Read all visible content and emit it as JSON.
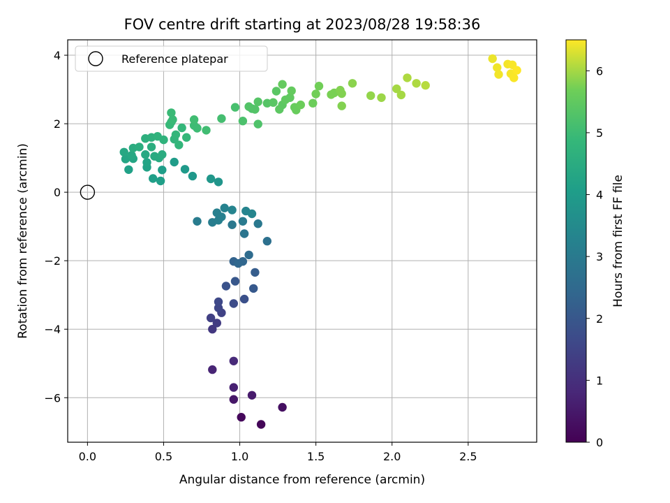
{
  "chart_data": {
    "type": "scatter",
    "title": "FOV centre drift starting at 2023/08/28 19:58:36",
    "xlabel": "Angular distance from reference (arcmin)",
    "ylabel": "Rotation from reference (arcmin)",
    "xlim": [
      -0.13,
      2.95
    ],
    "ylim": [
      -7.3,
      4.45
    ],
    "x_ticks": [
      0.0,
      0.5,
      1.0,
      1.5,
      2.0,
      2.5
    ],
    "x_tick_labels": [
      "0.0",
      "0.5",
      "1.0",
      "1.5",
      "2.0",
      "2.5"
    ],
    "y_ticks": [
      -6,
      -4,
      -2,
      0,
      2,
      4
    ],
    "y_tick_labels": [
      "−6",
      "−4",
      "−2",
      "0",
      "2",
      "4"
    ],
    "grid": true,
    "legend": {
      "position": "top-left",
      "entries": [
        {
          "label": "Reference platepar",
          "marker": "open-circle"
        }
      ]
    },
    "reference_point": {
      "x": 0.0,
      "y": 0.0
    },
    "colorbar": {
      "label": "Hours from first FF file",
      "colormap": "viridis",
      "range": [
        0,
        6.5
      ],
      "ticks": [
        0,
        1,
        2,
        3,
        4,
        5,
        6
      ],
      "tick_labels": [
        "0",
        "1",
        "2",
        "3",
        "4",
        "5",
        "6"
      ]
    },
    "points": [
      {
        "x": 1.01,
        "y": -6.57,
        "t": 0.15
      },
      {
        "x": 1.14,
        "y": -6.78,
        "t": 0.1
      },
      {
        "x": 1.28,
        "y": -6.28,
        "t": 0.3
      },
      {
        "x": 0.96,
        "y": -6.05,
        "t": 0.45
      },
      {
        "x": 1.08,
        "y": -5.93,
        "t": 0.55
      },
      {
        "x": 0.96,
        "y": -5.7,
        "t": 0.65
      },
      {
        "x": 0.82,
        "y": -5.18,
        "t": 0.75
      },
      {
        "x": 0.96,
        "y": -4.93,
        "t": 0.85
      },
      {
        "x": 0.82,
        "y": -4.0,
        "t": 1.2
      },
      {
        "x": 0.85,
        "y": -3.82,
        "t": 1.3
      },
      {
        "x": 0.81,
        "y": -3.67,
        "t": 1.4
      },
      {
        "x": 0.88,
        "y": -3.52,
        "t": 1.45
      },
      {
        "x": 0.86,
        "y": -3.38,
        "t": 1.55
      },
      {
        "x": 0.86,
        "y": -3.2,
        "t": 1.6
      },
      {
        "x": 0.96,
        "y": -3.25,
        "t": 1.7
      },
      {
        "x": 1.03,
        "y": -3.12,
        "t": 1.8
      },
      {
        "x": 0.91,
        "y": -2.74,
        "t": 1.9
      },
      {
        "x": 0.97,
        "y": -2.6,
        "t": 2.0
      },
      {
        "x": 1.09,
        "y": -2.81,
        "t": 2.05
      },
      {
        "x": 1.1,
        "y": -2.34,
        "t": 2.15
      },
      {
        "x": 0.96,
        "y": -2.02,
        "t": 2.3
      },
      {
        "x": 1.02,
        "y": -2.02,
        "t": 2.4
      },
      {
        "x": 0.99,
        "y": -2.08,
        "t": 2.45
      },
      {
        "x": 1.06,
        "y": -1.83,
        "t": 2.55
      },
      {
        "x": 1.18,
        "y": -1.43,
        "t": 2.7
      },
      {
        "x": 1.03,
        "y": -1.21,
        "t": 2.85
      },
      {
        "x": 0.95,
        "y": -0.95,
        "t": 2.95
      },
      {
        "x": 1.12,
        "y": -0.92,
        "t": 2.95
      },
      {
        "x": 1.02,
        "y": -0.85,
        "t": 3.0
      },
      {
        "x": 0.72,
        "y": -0.85,
        "t": 3.05
      },
      {
        "x": 0.82,
        "y": -0.88,
        "t": 3.1
      },
      {
        "x": 0.86,
        "y": -0.82,
        "t": 3.15
      },
      {
        "x": 0.88,
        "y": -0.72,
        "t": 3.2
      },
      {
        "x": 0.85,
        "y": -0.6,
        "t": 3.2
      },
      {
        "x": 0.9,
        "y": -0.46,
        "t": 3.25
      },
      {
        "x": 0.95,
        "y": -0.52,
        "t": 3.3
      },
      {
        "x": 1.04,
        "y": -0.55,
        "t": 3.3
      },
      {
        "x": 1.08,
        "y": -0.63,
        "t": 3.35
      },
      {
        "x": 0.86,
        "y": 0.3,
        "t": 3.8
      },
      {
        "x": 0.81,
        "y": 0.39,
        "t": 3.85
      },
      {
        "x": 0.69,
        "y": 0.47,
        "t": 3.9
      },
      {
        "x": 0.64,
        "y": 0.67,
        "t": 3.95
      },
      {
        "x": 0.57,
        "y": 0.88,
        "t": 4.0
      },
      {
        "x": 0.49,
        "y": 0.65,
        "t": 4.05
      },
      {
        "x": 0.48,
        "y": 0.33,
        "t": 4.1
      },
      {
        "x": 0.43,
        "y": 0.4,
        "t": 4.1
      },
      {
        "x": 0.27,
        "y": 0.66,
        "t": 4.15
      },
      {
        "x": 0.39,
        "y": 0.73,
        "t": 4.2
      },
      {
        "x": 0.39,
        "y": 0.87,
        "t": 4.25
      },
      {
        "x": 0.25,
        "y": 0.97,
        "t": 4.3
      },
      {
        "x": 0.3,
        "y": 0.98,
        "t": 4.3
      },
      {
        "x": 0.24,
        "y": 1.17,
        "t": 4.35
      },
      {
        "x": 0.29,
        "y": 1.08,
        "t": 4.35
      },
      {
        "x": 0.38,
        "y": 1.1,
        "t": 4.4
      },
      {
        "x": 0.44,
        "y": 1.05,
        "t": 4.45
      },
      {
        "x": 0.47,
        "y": 1.0,
        "t": 4.45
      },
      {
        "x": 0.49,
        "y": 1.1,
        "t": 4.5
      },
      {
        "x": 0.3,
        "y": 1.29,
        "t": 4.5
      },
      {
        "x": 0.34,
        "y": 1.32,
        "t": 4.55
      },
      {
        "x": 0.42,
        "y": 1.32,
        "t": 4.55
      },
      {
        "x": 0.38,
        "y": 1.57,
        "t": 4.6
      },
      {
        "x": 0.42,
        "y": 1.6,
        "t": 4.65
      },
      {
        "x": 0.46,
        "y": 1.63,
        "t": 4.7
      },
      {
        "x": 0.5,
        "y": 1.53,
        "t": 4.7
      },
      {
        "x": 0.57,
        "y": 1.55,
        "t": 4.75
      },
      {
        "x": 0.58,
        "y": 1.68,
        "t": 4.8
      },
      {
        "x": 0.6,
        "y": 1.38,
        "t": 4.8
      },
      {
        "x": 0.65,
        "y": 1.6,
        "t": 4.85
      },
      {
        "x": 0.62,
        "y": 1.88,
        "t": 4.85
      },
      {
        "x": 0.55,
        "y": 2.05,
        "t": 4.9
      },
      {
        "x": 0.54,
        "y": 1.97,
        "t": 4.9
      },
      {
        "x": 0.56,
        "y": 2.12,
        "t": 4.95
      },
      {
        "x": 0.55,
        "y": 2.32,
        "t": 4.95
      },
      {
        "x": 0.7,
        "y": 1.95,
        "t": 5.0
      },
      {
        "x": 0.72,
        "y": 1.87,
        "t": 5.0
      },
      {
        "x": 0.7,
        "y": 2.12,
        "t": 5.05
      },
      {
        "x": 0.78,
        "y": 1.81,
        "t": 5.05
      },
      {
        "x": 0.88,
        "y": 2.15,
        "t": 5.1
      },
      {
        "x": 0.97,
        "y": 2.48,
        "t": 5.15
      },
      {
        "x": 1.02,
        "y": 2.08,
        "t": 5.2
      },
      {
        "x": 1.12,
        "y": 1.99,
        "t": 5.25
      },
      {
        "x": 1.08,
        "y": 2.44,
        "t": 5.25
      },
      {
        "x": 1.06,
        "y": 2.5,
        "t": 5.3
      },
      {
        "x": 1.1,
        "y": 2.42,
        "t": 5.3
      },
      {
        "x": 1.12,
        "y": 2.64,
        "t": 5.35
      },
      {
        "x": 1.18,
        "y": 2.6,
        "t": 5.35
      },
      {
        "x": 1.22,
        "y": 2.62,
        "t": 5.4
      },
      {
        "x": 1.24,
        "y": 2.95,
        "t": 5.4
      },
      {
        "x": 1.28,
        "y": 2.55,
        "t": 5.45
      },
      {
        "x": 1.26,
        "y": 2.42,
        "t": 5.45
      },
      {
        "x": 1.3,
        "y": 2.7,
        "t": 5.5
      },
      {
        "x": 1.33,
        "y": 2.76,
        "t": 5.5
      },
      {
        "x": 1.28,
        "y": 3.15,
        "t": 5.55
      },
      {
        "x": 1.34,
        "y": 2.96,
        "t": 5.55
      },
      {
        "x": 1.36,
        "y": 2.48,
        "t": 5.6
      },
      {
        "x": 1.37,
        "y": 2.4,
        "t": 5.6
      },
      {
        "x": 1.4,
        "y": 2.55,
        "t": 5.65
      },
      {
        "x": 1.48,
        "y": 2.6,
        "t": 5.65
      },
      {
        "x": 1.5,
        "y": 2.87,
        "t": 5.7
      },
      {
        "x": 1.52,
        "y": 3.1,
        "t": 5.7
      },
      {
        "x": 1.6,
        "y": 2.85,
        "t": 5.75
      },
      {
        "x": 1.62,
        "y": 2.9,
        "t": 5.75
      },
      {
        "x": 1.66,
        "y": 2.98,
        "t": 5.8
      },
      {
        "x": 1.67,
        "y": 2.52,
        "t": 5.8
      },
      {
        "x": 1.67,
        "y": 2.88,
        "t": 5.8
      },
      {
        "x": 1.74,
        "y": 3.18,
        "t": 5.85
      },
      {
        "x": 1.86,
        "y": 2.82,
        "t": 5.9
      },
      {
        "x": 1.93,
        "y": 2.76,
        "t": 5.95
      },
      {
        "x": 2.03,
        "y": 3.02,
        "t": 6.0
      },
      {
        "x": 2.06,
        "y": 2.84,
        "t": 6.0
      },
      {
        "x": 2.1,
        "y": 3.34,
        "t": 6.05
      },
      {
        "x": 2.16,
        "y": 3.18,
        "t": 6.05
      },
      {
        "x": 2.22,
        "y": 3.12,
        "t": 6.1
      },
      {
        "x": 2.66,
        "y": 3.9,
        "t": 6.4
      },
      {
        "x": 2.69,
        "y": 3.64,
        "t": 6.42
      },
      {
        "x": 2.7,
        "y": 3.44,
        "t": 6.44
      },
      {
        "x": 2.76,
        "y": 3.74,
        "t": 6.45
      },
      {
        "x": 2.78,
        "y": 3.46,
        "t": 6.46
      },
      {
        "x": 2.79,
        "y": 3.72,
        "t": 6.47
      },
      {
        "x": 2.8,
        "y": 3.34,
        "t": 6.48
      },
      {
        "x": 2.82,
        "y": 3.56,
        "t": 6.5
      }
    ]
  }
}
